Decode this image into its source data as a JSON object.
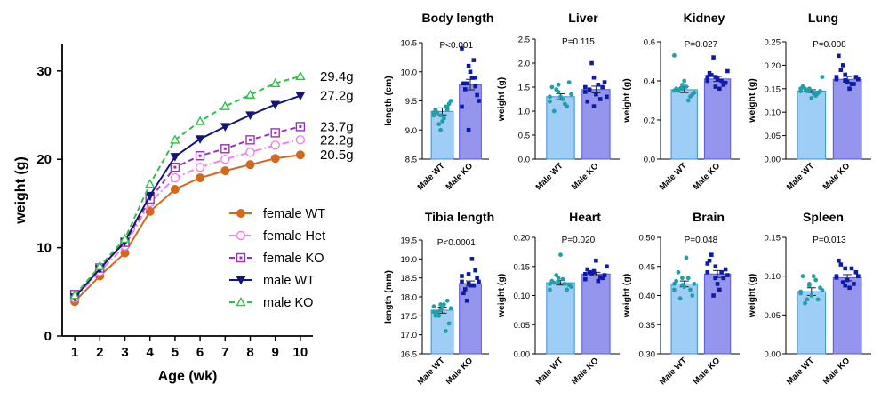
{
  "chart_data": [
    {
      "type": "line",
      "xlabel": "Age (wk)",
      "ylabel": "weight (g)",
      "x": [
        1,
        2,
        3,
        4,
        5,
        6,
        7,
        8,
        9,
        10
      ],
      "xlim": [
        0.5,
        10.5
      ],
      "ylim": [
        0,
        33
      ],
      "yticks": [
        0,
        10,
        20,
        30
      ],
      "grid": false,
      "legend_position": "bottom-right",
      "series": [
        {
          "name": "female WT",
          "color": "#d2691e",
          "marker": "circle",
          "dash": "solid",
          "values": [
            3.9,
            6.8,
            9.4,
            14.1,
            16.6,
            17.9,
            18.7,
            19.4,
            20.1,
            20.5
          ],
          "end_label": "20.5g"
        },
        {
          "name": "female Het",
          "color": "#ee82ee",
          "marker": "open-circle",
          "dash": "dashdot",
          "values": [
            4.3,
            7.3,
            10.2,
            15.1,
            17.9,
            19.1,
            20.0,
            20.8,
            21.6,
            22.2
          ],
          "end_label": "22.2g"
        },
        {
          "name": "female KO",
          "color": "#9b30b8",
          "marker": "open-square",
          "dash": "dash",
          "values": [
            4.7,
            7.7,
            10.6,
            15.5,
            19.1,
            20.4,
            21.2,
            22.2,
            23.0,
            23.7
          ],
          "end_label": "23.7g"
        },
        {
          "name": "male WT",
          "color": "#14147a",
          "marker": "triangle-down",
          "dash": "solid",
          "values": [
            4.4,
            7.6,
            10.7,
            15.9,
            20.3,
            22.3,
            23.7,
            25.0,
            26.2,
            27.2
          ],
          "end_label": "27.2g"
        },
        {
          "name": "male KO",
          "color": "#2ec04a",
          "marker": "open-triangle",
          "dash": "dash",
          "values": [
            4.6,
            7.9,
            11.0,
            17.2,
            22.2,
            24.3,
            26.0,
            27.3,
            28.6,
            29.4
          ],
          "end_label": "29.4g"
        }
      ]
    },
    {
      "type": "bar",
      "title": "Body length",
      "ylabel": "length (cm)",
      "categories": [
        "Male WT",
        "Male KO"
      ],
      "values": [
        9.32,
        9.78
      ],
      "sem": [
        0.06,
        0.09
      ],
      "ylim": [
        8.5,
        10.5
      ],
      "yticks": [
        "8.5",
        "9.0",
        "9.5",
        "10.0",
        "10.5"
      ],
      "pvalue": "P<0.001",
      "points": [
        [
          9.3,
          9.25,
          9.4,
          9.35,
          9.15,
          9.45,
          9.3,
          9.2,
          9.5,
          9.1,
          9.4,
          9.25,
          9.0,
          9.35
        ],
        [
          10.4,
          10.1,
          9.9,
          9.8,
          10.0,
          9.6,
          9.7,
          9.9,
          9.5,
          9.8,
          10.2,
          9.4,
          9.0,
          9.75
        ]
      ]
    },
    {
      "type": "bar",
      "title": "Liver",
      "ylabel": "weight (g)",
      "categories": [
        "Male WT",
        "Male KO"
      ],
      "values": [
        1.3,
        1.45
      ],
      "sem": [
        0.06,
        0.07
      ],
      "ylim": [
        0.0,
        2.5
      ],
      "yticks": [
        "0.0",
        "0.5",
        "1.0",
        "1.5",
        "2.0",
        "2.5"
      ],
      "pvalue": "P=0.115",
      "points": [
        [
          1.2,
          1.4,
          1.1,
          1.5,
          1.3,
          1.6,
          1.0,
          1.25,
          1.35,
          1.45,
          1.15,
          1.3,
          1.55
        ],
        [
          1.4,
          1.7,
          1.5,
          1.2,
          1.35,
          1.6,
          1.45,
          1.55,
          1.3,
          2.0,
          1.25,
          1.5,
          1.1
        ]
      ]
    },
    {
      "type": "bar",
      "title": "Kidney",
      "ylabel": "weight (g)",
      "categories": [
        "Male WT",
        "Male KO"
      ],
      "values": [
        0.355,
        0.41
      ],
      "sem": [
        0.015,
        0.013
      ],
      "ylim": [
        0.0,
        0.6
      ],
      "yticks": [
        "0.0",
        "0.2",
        "0.4",
        "0.6"
      ],
      "pvalue": "P=0.027",
      "points": [
        [
          0.35,
          0.38,
          0.32,
          0.36,
          0.4,
          0.33,
          0.35,
          0.37,
          0.34,
          0.36,
          0.3,
          0.53,
          0.36
        ],
        [
          0.4,
          0.42,
          0.38,
          0.44,
          0.41,
          0.39,
          0.43,
          0.36,
          0.45,
          0.52,
          0.4,
          0.42,
          0.37
        ]
      ]
    },
    {
      "type": "bar",
      "title": "Lung",
      "ylabel": "weight (g)",
      "categories": [
        "Male WT",
        "Male KO"
      ],
      "values": [
        0.145,
        0.17
      ],
      "sem": [
        0.003,
        0.006
      ],
      "ylim": [
        0.0,
        0.25
      ],
      "yticks": [
        "0.00",
        "0.05",
        "0.10",
        "0.15",
        "0.20",
        "0.25"
      ],
      "pvalue": "P=0.008",
      "points": [
        [
          0.145,
          0.15,
          0.14,
          0.155,
          0.13,
          0.145,
          0.15,
          0.14,
          0.175,
          0.145,
          0.135,
          0.15,
          0.148
        ],
        [
          0.17,
          0.18,
          0.16,
          0.22,
          0.165,
          0.175,
          0.19,
          0.15,
          0.17,
          0.2,
          0.16,
          0.175,
          0.168
        ]
      ]
    },
    {
      "type": "bar",
      "title": "Tibia length",
      "ylabel": "length (mm)",
      "categories": [
        "Male WT",
        "Male KO"
      ],
      "values": [
        17.65,
        18.35
      ],
      "sem": [
        0.08,
        0.07
      ],
      "ylim": [
        16.5,
        19.5
      ],
      "yticks": [
        "16.5",
        "17.0",
        "17.5",
        "18.0",
        "18.5",
        "19.0",
        "19.5"
      ],
      "pvalue": "P<0.0001",
      "points": [
        [
          17.6,
          17.8,
          17.9,
          17.5,
          17.7,
          17.3,
          17.6,
          17.8,
          17.7,
          17.5,
          17.1,
          17.75,
          17.65
        ],
        [
          18.4,
          18.6,
          18.7,
          18.1,
          18.3,
          18.5,
          18.2,
          19.0,
          18.4,
          17.9,
          18.3,
          18.55,
          18.35
        ]
      ]
    },
    {
      "type": "bar",
      "title": "Heart",
      "ylabel": "weight (g)",
      "categories": [
        "Male WT",
        "Male KO"
      ],
      "values": [
        0.122,
        0.137
      ],
      "sem": [
        0.004,
        0.003
      ],
      "ylim": [
        0.0,
        0.2
      ],
      "yticks": [
        "0.00",
        "0.05",
        "0.10",
        "0.15",
        "0.20"
      ],
      "pvalue": "P=0.020",
      "points": [
        [
          0.12,
          0.13,
          0.11,
          0.125,
          0.17,
          0.118,
          0.122,
          0.128,
          0.115,
          0.135,
          0.12,
          0.11,
          0.124
        ],
        [
          0.137,
          0.14,
          0.13,
          0.145,
          0.16,
          0.135,
          0.14,
          0.125,
          0.15,
          0.138,
          0.132,
          0.128,
          0.142
        ]
      ]
    },
    {
      "type": "bar",
      "title": "Brain",
      "ylabel": "weight (g)",
      "categories": [
        "Male WT",
        "Male KO"
      ],
      "values": [
        0.42,
        0.437
      ],
      "sem": [
        0.005,
        0.006
      ],
      "ylim": [
        0.3,
        0.5
      ],
      "yticks": [
        "0.30",
        "0.35",
        "0.40",
        "0.45",
        "0.50"
      ],
      "pvalue": "P=0.048",
      "points": [
        [
          0.42,
          0.43,
          0.41,
          0.425,
          0.415,
          0.4,
          0.44,
          0.465,
          0.42,
          0.395,
          0.43,
          0.41,
          0.418
        ],
        [
          0.44,
          0.45,
          0.43,
          0.46,
          0.42,
          0.445,
          0.47,
          0.41,
          0.435,
          0.4,
          0.44,
          0.455,
          0.43
        ]
      ]
    },
    {
      "type": "bar",
      "title": "Spleen",
      "ylabel": "weight (g)",
      "categories": [
        "Male WT",
        "Male KO"
      ],
      "values": [
        0.08,
        0.098
      ],
      "sem": [
        0.005,
        0.004
      ],
      "ylim": [
        0.0,
        0.15
      ],
      "yticks": [
        "0.00",
        "0.05",
        "0.10",
        "0.15"
      ],
      "pvalue": "P=0.013",
      "points": [
        [
          0.08,
          0.09,
          0.07,
          0.1,
          0.075,
          0.085,
          0.065,
          0.1,
          0.082,
          0.07,
          0.095,
          0.078,
          0.088
        ],
        [
          0.1,
          0.11,
          0.09,
          0.12,
          0.095,
          0.105,
          0.115,
          0.085,
          0.1,
          0.092,
          0.11,
          0.098,
          0.088
        ]
      ]
    }
  ],
  "colors": {
    "wt_bar_fill": "#9ecdf5",
    "ko_bar_fill": "#9595ee",
    "wt_points": "#1fa0a8",
    "ko_points": "#0d1aa8"
  }
}
